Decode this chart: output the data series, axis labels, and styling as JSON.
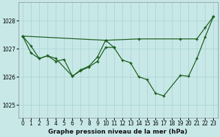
{
  "title": "Graphe pression niveau de la mer (hPa)",
  "bg_color": "#c8e8e8",
  "grid_color": "#aad4d4",
  "line_color": "#1a5c1a",
  "xlim": [
    -0.5,
    23.5
  ],
  "ylim": [
    1024.55,
    1028.65
  ],
  "x_ticks": [
    0,
    1,
    2,
    3,
    4,
    5,
    6,
    7,
    8,
    9,
    10,
    11,
    12,
    13,
    14,
    15,
    16,
    17,
    18,
    19,
    20,
    21,
    22,
    23
  ],
  "y_ticks": [
    1025,
    1026,
    1027,
    1028
  ],
  "tick_fontsize": 5.5,
  "xlabel_fontsize": 6.5,
  "s1_x": [
    0,
    10,
    14,
    19,
    21,
    22,
    23
  ],
  "s1_y": [
    1027.45,
    1027.3,
    1027.35,
    1027.35,
    1027.35,
    1027.75,
    1028.15
  ],
  "s2_x": [
    0,
    1,
    2,
    3,
    4,
    6,
    7,
    8,
    9,
    10,
    11,
    12,
    13,
    14,
    15,
    16,
    17,
    19,
    20,
    21,
    22,
    23
  ],
  "s2_y": [
    1027.45,
    1027.1,
    1026.65,
    1026.75,
    1026.65,
    1026.02,
    1026.22,
    1026.35,
    1026.55,
    1027.05,
    1027.05,
    1026.6,
    1026.5,
    1026.0,
    1025.9,
    1025.42,
    1025.32,
    1026.05,
    1026.02,
    1026.65,
    1027.42,
    1028.15
  ],
  "s3_x": [
    0,
    1,
    2,
    3,
    4,
    5,
    6,
    7,
    8,
    9,
    10,
    11
  ],
  "s3_y": [
    1027.45,
    1026.85,
    1026.65,
    1026.75,
    1026.55,
    1026.62,
    1026.02,
    1026.25,
    1026.38,
    1026.7,
    1027.3,
    1027.05
  ]
}
